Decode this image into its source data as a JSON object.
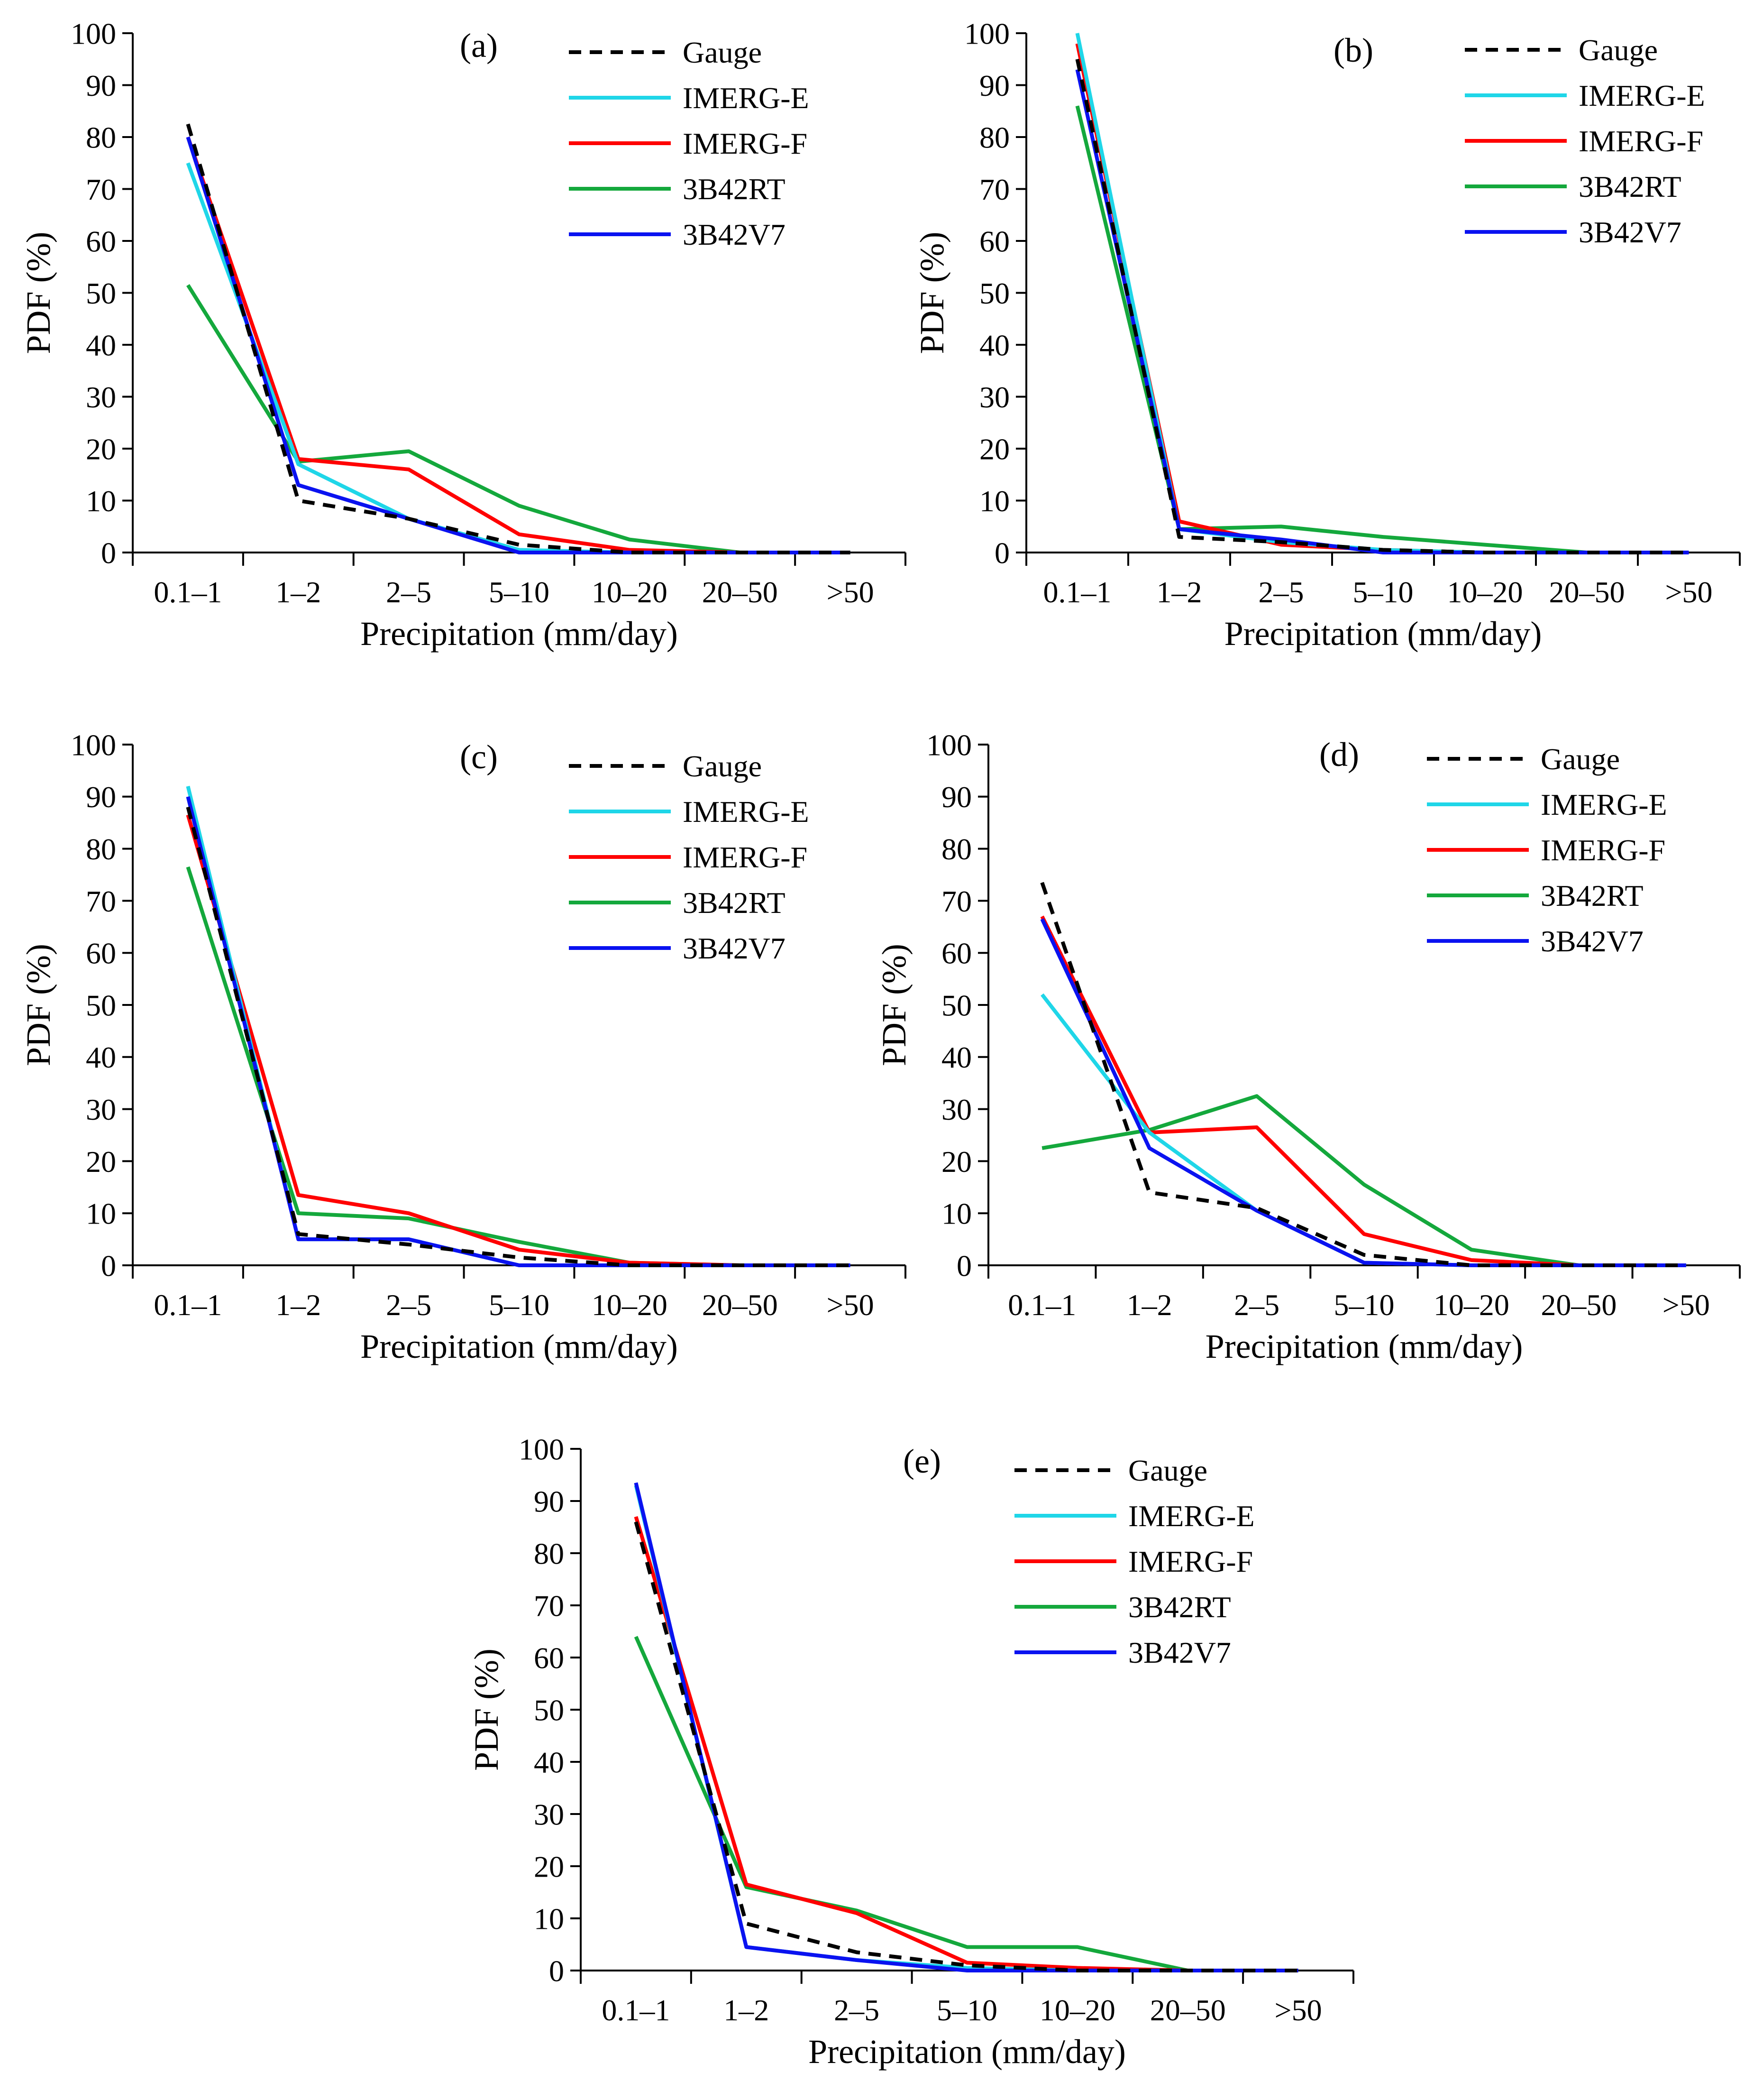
{
  "colors": {
    "Gauge": "#000000",
    "IMERG-E": "#1fd6e8",
    "IMERG-F": "#ff0000",
    "3B42RT": "#14a83c",
    "3B42V7": "#0a12f0"
  },
  "chart_data": [
    {
      "type": "line",
      "panel_label": "(a)",
      "xlabel": "Precipitation (mm/day)",
      "ylabel": "PDF (%)",
      "ylim": [
        0,
        100
      ],
      "yticks": [
        0,
        10,
        20,
        30,
        40,
        50,
        60,
        70,
        80,
        90,
        100
      ],
      "categories": [
        "0.1–1",
        "1–2",
        "2–5",
        "5–10",
        "10–20",
        "20–50",
        ">50"
      ],
      "legend_position": "top-right",
      "grid": false,
      "series": [
        {
          "name": "Gauge",
          "dashed": true,
          "values": [
            82.5,
            10,
            6.5,
            1.5,
            0,
            0,
            0
          ]
        },
        {
          "name": "IMERG-E",
          "values": [
            75,
            17,
            6.5,
            0.5,
            0,
            0,
            0
          ]
        },
        {
          "name": "IMERG-F",
          "values": [
            80,
            18,
            16,
            3.5,
            0.5,
            0,
            0
          ]
        },
        {
          "name": "3B42RT",
          "values": [
            51.5,
            17.5,
            19.5,
            9,
            2.5,
            0,
            0
          ]
        },
        {
          "name": "3B42V7",
          "values": [
            80,
            13,
            6.5,
            0,
            0,
            0,
            0
          ]
        }
      ]
    },
    {
      "type": "line",
      "panel_label": "(b)",
      "xlabel": "Precipitation (mm/day)",
      "ylabel": "PDF (%)",
      "ylim": [
        0,
        100
      ],
      "yticks": [
        0,
        10,
        20,
        30,
        40,
        50,
        60,
        70,
        80,
        90,
        100
      ],
      "categories": [
        "0.1–1",
        "1–2",
        "2–5",
        "5–10",
        "10–20",
        "20–50",
        ">50"
      ],
      "legend_position": "top-right",
      "grid": false,
      "series": [
        {
          "name": "Gauge",
          "dashed": true,
          "values": [
            95,
            3,
            2,
            0.5,
            0,
            0,
            0
          ]
        },
        {
          "name": "IMERG-E",
          "values": [
            100,
            4.5,
            2,
            0.5,
            0,
            0,
            0
          ]
        },
        {
          "name": "IMERG-F",
          "values": [
            98,
            6,
            1.5,
            0.5,
            0,
            0,
            0
          ]
        },
        {
          "name": "3B42RT",
          "values": [
            86,
            4.5,
            5,
            3,
            1.5,
            0,
            0
          ]
        },
        {
          "name": "3B42V7",
          "values": [
            93,
            4.5,
            2.5,
            0,
            0,
            0,
            0
          ]
        }
      ]
    },
    {
      "type": "line",
      "panel_label": "(c)",
      "xlabel": "Precipitation (mm/day)",
      "ylabel": "PDF (%)",
      "ylim": [
        0,
        100
      ],
      "yticks": [
        0,
        10,
        20,
        30,
        40,
        50,
        60,
        70,
        80,
        90,
        100
      ],
      "categories": [
        "0.1–1",
        "1–2",
        "2–5",
        "5–10",
        "10–20",
        "20–50",
        ">50"
      ],
      "legend_position": "top-right",
      "grid": false,
      "series": [
        {
          "name": "Gauge",
          "dashed": true,
          "values": [
            88,
            6,
            4,
            1.5,
            0,
            0,
            0
          ]
        },
        {
          "name": "IMERG-E",
          "values": [
            92,
            5,
            5,
            0,
            0,
            0,
            0
          ]
        },
        {
          "name": "IMERG-F",
          "values": [
            86.5,
            13.5,
            10,
            3,
            0.5,
            0,
            0
          ]
        },
        {
          "name": "3B42RT",
          "values": [
            76.5,
            10,
            9,
            4.5,
            0.5,
            0,
            0
          ]
        },
        {
          "name": "3B42V7",
          "values": [
            90,
            5,
            5,
            0,
            0,
            0,
            0
          ]
        }
      ]
    },
    {
      "type": "line",
      "panel_label": "(d)",
      "xlabel": "Precipitation (mm/day)",
      "ylabel": "PDF (%)",
      "ylim": [
        0,
        100
      ],
      "yticks": [
        0,
        10,
        20,
        30,
        40,
        50,
        60,
        70,
        80,
        90,
        100
      ],
      "categories": [
        "0.1–1",
        "1–2",
        "2–5",
        "5–10",
        "10–20",
        "20–50",
        ">50"
      ],
      "legend_position": "top-right",
      "grid": false,
      "series": [
        {
          "name": "Gauge",
          "dashed": true,
          "values": [
            73.5,
            14,
            11,
            2,
            0,
            0,
            0
          ]
        },
        {
          "name": "IMERG-E",
          "values": [
            52,
            25.5,
            10.5,
            0.5,
            0,
            0,
            0
          ]
        },
        {
          "name": "IMERG-F",
          "values": [
            67,
            25.5,
            26.5,
            6,
            1,
            0,
            0
          ]
        },
        {
          "name": "3B42RT",
          "values": [
            22.5,
            26,
            32.5,
            15.5,
            3,
            0,
            0
          ]
        },
        {
          "name": "3B42V7",
          "values": [
            66.5,
            22.5,
            10.5,
            0.5,
            0,
            0,
            0
          ]
        }
      ]
    },
    {
      "type": "line",
      "panel_label": "(e)",
      "xlabel": "Precipitation (mm/day)",
      "ylabel": "PDF (%)",
      "ylim": [
        0,
        100
      ],
      "yticks": [
        0,
        10,
        20,
        30,
        40,
        50,
        60,
        70,
        80,
        90,
        100
      ],
      "categories": [
        "0.1–1",
        "1–2",
        "2–5",
        "5–10",
        "10–20",
        "20–50",
        ">50"
      ],
      "legend_position": "top-right",
      "grid": false,
      "series": [
        {
          "name": "Gauge",
          "dashed": true,
          "values": [
            86,
            9,
            3.5,
            1,
            0,
            0,
            0
          ]
        },
        {
          "name": "IMERG-E",
          "values": [
            93,
            4.5,
            2,
            0.5,
            0,
            0,
            0
          ]
        },
        {
          "name": "IMERG-F",
          "values": [
            87,
            16.5,
            11,
            1.5,
            0.5,
            0,
            0
          ]
        },
        {
          "name": "3B42RT",
          "values": [
            64,
            16,
            11.5,
            4.5,
            4.5,
            0,
            0
          ]
        },
        {
          "name": "3B42V7",
          "values": [
            93.5,
            4.5,
            2,
            0,
            0,
            0,
            0
          ]
        }
      ]
    }
  ]
}
